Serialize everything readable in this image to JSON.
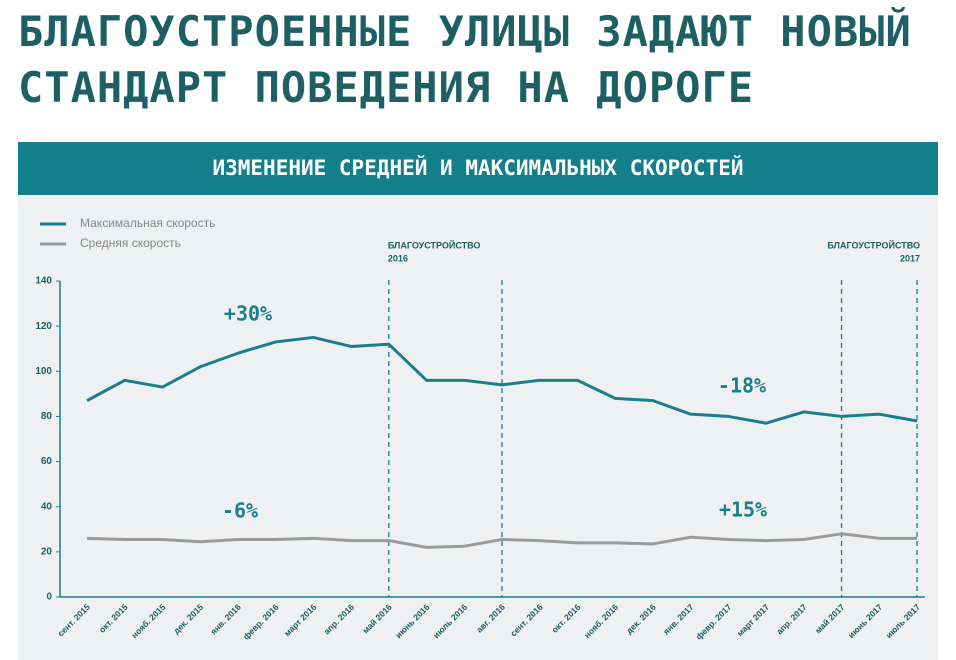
{
  "header": {
    "title": "БЛАГОУСТРОЕННЫЕ УЛИЦЫ ЗАДАЮТ НОВЫЙ СТАНДАРТ ПОВЕДЕНИЯ НА ДОРОГЕ"
  },
  "chart_data": {
    "type": "line",
    "title": "ИЗМЕНЕНИЕ СРЕДНЕЙ И МАКСИМАЛЬНЫХ СКОРОСТЕЙ",
    "categories": [
      "сент. 2015",
      "окт. 2015",
      "нояб. 2015",
      "дек. 2015",
      "янв. 2016",
      "февр. 2016",
      "март 2016",
      "апр. 2016",
      "май 2016",
      "июнь 2016",
      "июль 2016",
      "авг. 2016",
      "сент. 2016",
      "окт. 2016",
      "нояб. 2016",
      "дек. 2016",
      "янв. 2017",
      "февр. 2017",
      "март 2017",
      "апр. 2017",
      "май 2017",
      "июнь 2017",
      "июль 2017"
    ],
    "series": [
      {
        "name": "Максимальная скорость",
        "color": "#1a7f8c",
        "values": [
          87,
          96,
          93,
          102,
          108,
          113,
          115,
          111,
          112,
          96,
          96,
          94,
          96,
          96,
          88,
          87,
          81,
          80,
          77,
          82,
          80,
          81,
          78
        ]
      },
      {
        "name": "Средняя скорость",
        "color": "#9a9a9a",
        "values": [
          26,
          25.5,
          25.5,
          24.5,
          25.5,
          25.5,
          26,
          25,
          25,
          22,
          22.5,
          25.5,
          25,
          24,
          24,
          23.5,
          26.5,
          25.5,
          25,
          25.5,
          28,
          26,
          26
        ]
      }
    ],
    "ylim": [
      0,
      140
    ],
    "yticks": [
      0,
      20,
      40,
      60,
      80,
      100,
      120,
      140
    ],
    "grid": false,
    "legend": "top-left",
    "annotations": [
      {
        "lines": [
          "БЛАГОУСТРОЙСТВО",
          "2016"
        ]
      },
      {
        "lines": [
          "БЛАГОУСТРОЙСТВО",
          "2017"
        ]
      },
      {
        "text": "+30%"
      },
      {
        "text": "-18%"
      },
      {
        "text": "-6%"
      },
      {
        "text": "+15%"
      }
    ]
  }
}
